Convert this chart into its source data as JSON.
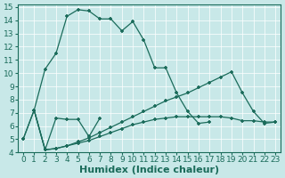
{
  "xlabel": "Humidex (Indice chaleur)",
  "bg_color": "#c8e8e8",
  "line_color": "#1a6b5a",
  "xlim": [
    -0.5,
    23.5
  ],
  "ylim": [
    4,
    15.2
  ],
  "yticks": [
    4,
    5,
    6,
    7,
    8,
    9,
    10,
    11,
    12,
    13,
    14,
    15
  ],
  "xticks": [
    0,
    1,
    2,
    3,
    4,
    5,
    6,
    7,
    8,
    9,
    10,
    11,
    12,
    13,
    14,
    15,
    16,
    17,
    18,
    19,
    20,
    21,
    22,
    23
  ],
  "line1_x": [
    0,
    1,
    2,
    3,
    4,
    5,
    6,
    7,
    8,
    9,
    10,
    11,
    12,
    13,
    14,
    15,
    16,
    17,
    18,
    19,
    20,
    21,
    22,
    23
  ],
  "line1_y": [
    5.0,
    7.2,
    10.3,
    11.5,
    14.3,
    14.8,
    14.7,
    14.1,
    14.1,
    13.2,
    13.9,
    12.5,
    10.4,
    10.4,
    8.5,
    7.1,
    6.2,
    6.3,
    null,
    null,
    null,
    null,
    null,
    null
  ],
  "line2_x": [
    0,
    1,
    2,
    3,
    4,
    5,
    6,
    7,
    8,
    9,
    10,
    11,
    12,
    13,
    14,
    15,
    16,
    17,
    18,
    19,
    20,
    21,
    22,
    23
  ],
  "line2_y": [
    5.0,
    7.2,
    4.2,
    6.6,
    6.5,
    6.5,
    5.2,
    6.6,
    null,
    null,
    null,
    null,
    null,
    null,
    null,
    null,
    null,
    null,
    null,
    null,
    null,
    null,
    null,
    null
  ],
  "line3_x": [
    1,
    2,
    3,
    4,
    5,
    6,
    7,
    8,
    9,
    10,
    11,
    12,
    13,
    14,
    15,
    16,
    17,
    18,
    19,
    20,
    21,
    22,
    23
  ],
  "line3_y": [
    7.2,
    4.2,
    4.3,
    4.5,
    4.7,
    4.9,
    5.2,
    5.5,
    5.8,
    6.1,
    6.3,
    6.5,
    6.6,
    6.7,
    6.7,
    6.7,
    6.7,
    6.7,
    6.6,
    6.4,
    6.4,
    6.3,
    6.3
  ],
  "line4_x": [
    1,
    2,
    3,
    4,
    5,
    6,
    7,
    8,
    9,
    10,
    11,
    12,
    13,
    14,
    15,
    16,
    17,
    18,
    19,
    20,
    21,
    22,
    23
  ],
  "line4_y": [
    7.2,
    4.2,
    4.3,
    4.5,
    4.8,
    5.1,
    5.5,
    5.9,
    6.3,
    6.7,
    7.1,
    7.5,
    7.9,
    8.2,
    8.5,
    8.9,
    9.3,
    9.7,
    10.1,
    8.5,
    7.1,
    6.2,
    6.3
  ],
  "grid_color": "#d0e8e0",
  "tick_fontsize": 6.5,
  "xlabel_fontsize": 8
}
